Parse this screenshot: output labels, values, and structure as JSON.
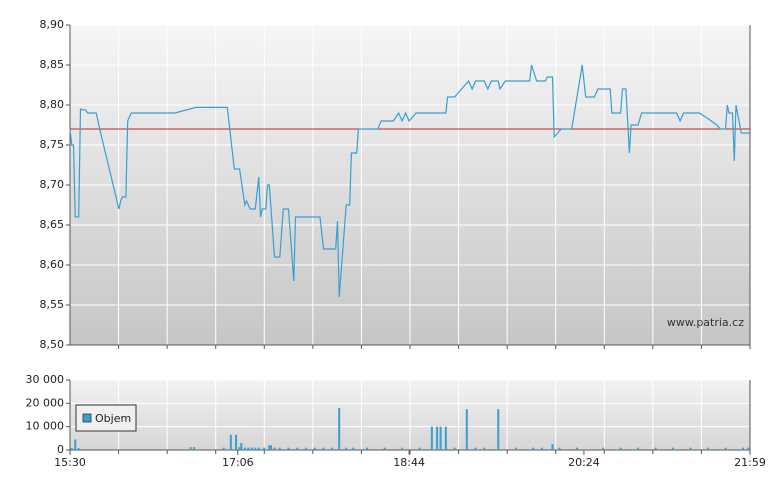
{
  "chart_data": [
    {
      "type": "line",
      "color": "#3a9fd0",
      "annotation": "www.patria.cz",
      "reference_line": {
        "value": 8.77,
        "color": "#cc2222"
      },
      "xlim": [
        "15:30",
        "21:59"
      ],
      "ylim": [
        8.5,
        8.9
      ],
      "yticks": [
        {
          "value": 8.5,
          "label": "8,50"
        },
        {
          "value": 8.55,
          "label": "8,55"
        },
        {
          "value": 8.6,
          "label": "8,60"
        },
        {
          "value": 8.65,
          "label": "8,65"
        },
        {
          "value": 8.7,
          "label": "8,70"
        },
        {
          "value": 8.75,
          "label": "8,75"
        },
        {
          "value": 8.8,
          "label": "8,80"
        },
        {
          "value": 8.85,
          "label": "8,85"
        },
        {
          "value": 8.9,
          "label": "8,90"
        }
      ],
      "grid": true,
      "x": [
        "15:30",
        "15:31",
        "15:32",
        "15:33",
        "15:35",
        "15:36",
        "15:37",
        "15:39",
        "15:40",
        "15:45",
        "15:47",
        "15:58",
        "15:59",
        "16:00",
        "16:02",
        "16:03",
        "16:05",
        "16:30",
        "16:42",
        "17:00",
        "17:04",
        "17:07",
        "17:10",
        "17:11",
        "17:13",
        "17:16",
        "17:18",
        "17:19",
        "17:20",
        "17:22",
        "17:23",
        "17:24",
        "17:27",
        "17:30",
        "17:32",
        "17:35",
        "17:38",
        "17:39",
        "17:53",
        "17:55",
        "18:02",
        "18:03",
        "18:04",
        "18:08",
        "18:10",
        "18:11",
        "18:14",
        "18:15",
        "18:17",
        "18:26",
        "18:28",
        "18:35",
        "18:38",
        "18:40",
        "18:42",
        "18:44",
        "18:48",
        "19:05",
        "19:06",
        "19:10",
        "19:14",
        "19:18",
        "19:20",
        "19:22",
        "19:27",
        "19:29",
        "19:31",
        "19:35",
        "19:36",
        "19:39",
        "19:53",
        "19:54",
        "19:57",
        "20:02",
        "20:03",
        "20:06",
        "20:07",
        "20:09",
        "20:11",
        "20:17",
        "20:23",
        "20:25",
        "20:30",
        "20:32",
        "20:39",
        "20:40",
        "20:45",
        "20:46",
        "20:48",
        "20:50",
        "20:51",
        "20:55",
        "20:57",
        "21:17",
        "21:19",
        "21:21",
        "21:30",
        "21:35",
        "21:40",
        "21:42",
        "21:45",
        "21:46",
        "21:47",
        "21:49",
        "21:50",
        "21:51",
        "21:54",
        "21:59"
      ],
      "values": [
        8.77,
        8.75,
        8.75,
        8.66,
        8.66,
        8.795,
        8.794,
        8.794,
        8.79,
        8.79,
        8.77,
        8.67,
        8.68,
        8.685,
        8.685,
        8.78,
        8.79,
        8.79,
        8.797,
        8.797,
        8.72,
        8.72,
        8.675,
        8.68,
        8.67,
        8.67,
        8.71,
        8.66,
        8.67,
        8.67,
        8.7,
        8.7,
        8.61,
        8.61,
        8.67,
        8.67,
        8.58,
        8.66,
        8.66,
        8.62,
        8.62,
        8.655,
        8.56,
        8.675,
        8.675,
        8.74,
        8.74,
        8.77,
        8.77,
        8.77,
        8.78,
        8.78,
        8.79,
        8.78,
        8.79,
        8.78,
        8.79,
        8.79,
        8.81,
        8.81,
        8.82,
        8.83,
        8.82,
        8.83,
        8.83,
        8.82,
        8.83,
        8.83,
        8.82,
        8.83,
        8.83,
        8.85,
        8.83,
        8.83,
        8.835,
        8.835,
        8.76,
        8.765,
        8.77,
        8.77,
        8.85,
        8.81,
        8.81,
        8.82,
        8.82,
        8.79,
        8.79,
        8.82,
        8.82,
        8.74,
        8.775,
        8.775,
        8.79,
        8.79,
        8.78,
        8.79,
        8.79,
        8.783,
        8.775,
        8.77,
        8.77,
        8.8,
        8.79,
        8.79,
        8.73,
        8.8,
        8.765,
        8.765
      ]
    },
    {
      "type": "bar",
      "xlim": [
        "15:30",
        "21:59"
      ],
      "xticks": [
        "15:30",
        "17:06",
        "18:44",
        "20:24",
        "21:59"
      ],
      "ylim": [
        0,
        30000
      ],
      "yticks": [
        0,
        {
          "value": 10000,
          "label": "10 000"
        },
        {
          "value": 20000,
          "label": "20 000"
        },
        {
          "value": 30000,
          "label": "30 000"
        }
      ],
      "grid": true,
      "legend": "upper left",
      "x": [
        "15:31",
        "15:33",
        "15:35",
        "16:39",
        "16:41",
        "16:58",
        "17:02",
        "17:05",
        "17:07",
        "17:08",
        "17:10",
        "17:12",
        "17:14",
        "17:16",
        "17:18",
        "17:21",
        "17:24",
        "17:25",
        "17:27",
        "17:30",
        "17:35",
        "17:40",
        "17:45",
        "17:50",
        "17:55",
        "18:00",
        "18:04",
        "18:08",
        "18:12",
        "18:20",
        "18:30",
        "18:40",
        "18:50",
        "18:57",
        "19:00",
        "19:02",
        "19:05",
        "19:10",
        "19:17",
        "19:22",
        "19:27",
        "19:35",
        "19:45",
        "19:55",
        "20:00",
        "20:06",
        "20:10",
        "20:20",
        "20:35",
        "20:45",
        "20:55",
        "21:05",
        "21:15",
        "21:25",
        "21:35",
        "21:45",
        "21:55",
        "21:58"
      ],
      "series": [
        {
          "name": "Objem",
          "color": "#3a9fd0",
          "values": [
            800,
            4500,
            800,
            1200,
            1200,
            1000,
            6500,
            6500,
            1200,
            3000,
            1000,
            1000,
            1000,
            1000,
            1000,
            1000,
            2000,
            2000,
            1000,
            1000,
            1000,
            1000,
            1000,
            1000,
            1000,
            1000,
            18000,
            1000,
            1000,
            1000,
            1000,
            1000,
            1000,
            10000,
            10000,
            10000,
            10000,
            1000,
            17500,
            1000,
            1000,
            17500,
            1000,
            1000,
            1000,
            2500,
            1000,
            1000,
            1000,
            1000,
            1000,
            1000,
            1000,
            1000,
            1000,
            1000,
            1000,
            1000
          ]
        }
      ]
    }
  ]
}
